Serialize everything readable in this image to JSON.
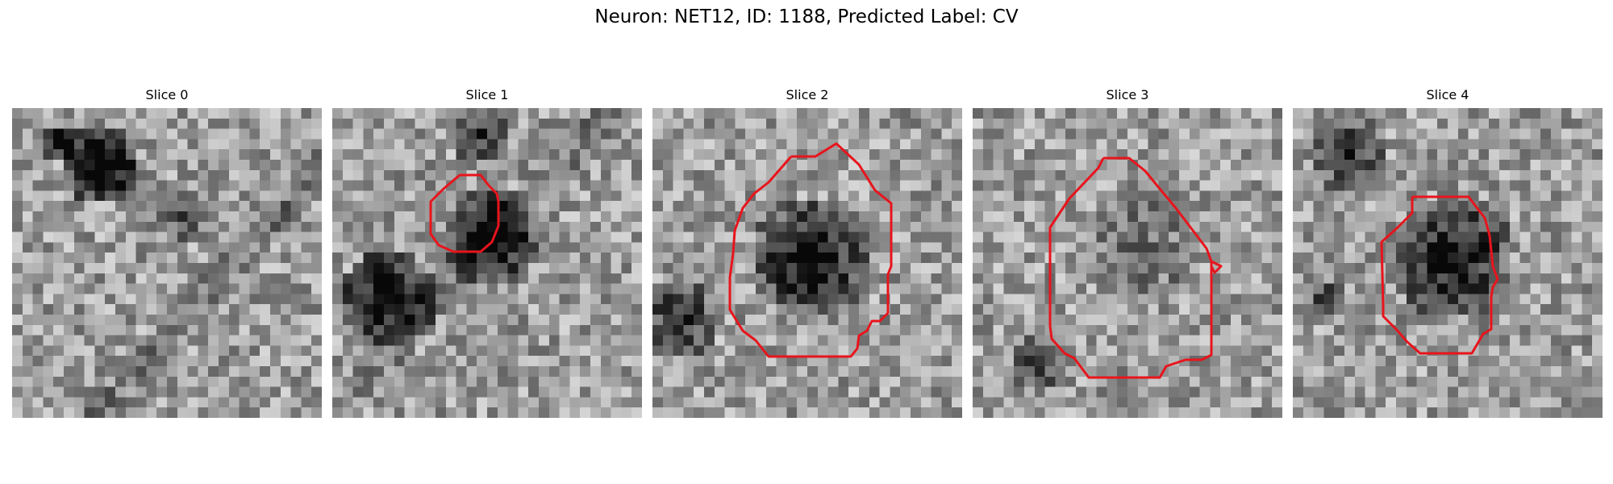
{
  "figure": {
    "title": "Neuron: NET12, ID: 1188, Predicted Label: CV"
  },
  "slices": [
    {
      "title": "Slice 0",
      "has_contour": false,
      "contour_color": "#e8141c"
    },
    {
      "title": "Slice 1",
      "has_contour": true,
      "contour_color": "#e8141c"
    },
    {
      "title": "Slice 2",
      "has_contour": true,
      "contour_color": "#e8141c"
    },
    {
      "title": "Slice 3",
      "has_contour": true,
      "contour_color": "#e8141c"
    },
    {
      "title": "Slice 4",
      "has_contour": true,
      "contour_color": "#e8141c"
    }
  ]
}
